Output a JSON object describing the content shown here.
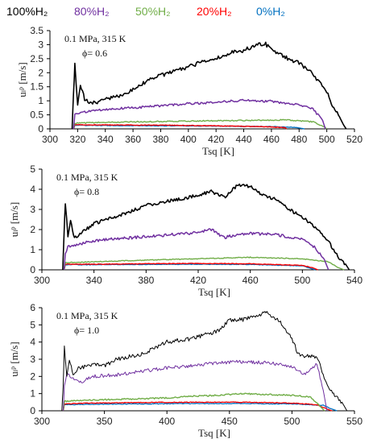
{
  "legend": [
    {
      "label": "100%H₂",
      "color": "#000000"
    },
    {
      "label": "80%H₂",
      "color": "#7030A0"
    },
    {
      "label": "50%H₂",
      "color": "#70AD47"
    },
    {
      "label": "20%H₂",
      "color": "#FF0000"
    },
    {
      "label": "0%H₂",
      "color": "#0070C0"
    }
  ],
  "chart_data": [
    {
      "type": "line",
      "title": "",
      "annotation_lines": [
        "0.1 MPa, 315 K",
        "ϕ= 0.6"
      ],
      "xlabel": "Tsq [K]",
      "ylabel": "uₗᵖ [m/s]",
      "xlim": [
        300,
        520
      ],
      "ylim": [
        0,
        3.5
      ],
      "xticks": [
        300,
        320,
        340,
        360,
        380,
        400,
        420,
        440,
        460,
        480,
        500,
        520
      ],
      "yticks": [
        0,
        0.5,
        1,
        1.5,
        2,
        2.5,
        3,
        3.5
      ],
      "ytick_labels": [
        "0",
        "0.5",
        "1",
        "1.5",
        "2",
        "2.5",
        "3",
        "3.5"
      ],
      "series": [
        {
          "name": "100%H₂",
          "color": "#000000",
          "width": 1.6,
          "noise": 0.07,
          "x": [
            316,
            317,
            318,
            320,
            322,
            325,
            330,
            340,
            350,
            360,
            370,
            380,
            390,
            400,
            410,
            420,
            430,
            440,
            450,
            455,
            460,
            470,
            480,
            490,
            500,
            505,
            510,
            512,
            514
          ],
          "y": [
            0.0,
            1.2,
            2.3,
            0.9,
            1.6,
            1.05,
            0.9,
            1.05,
            1.15,
            1.4,
            1.7,
            1.9,
            2.05,
            2.2,
            2.4,
            2.5,
            2.7,
            2.8,
            3.0,
            3.05,
            2.85,
            2.55,
            2.35,
            1.95,
            1.3,
            0.75,
            0.4,
            0.15,
            0.0
          ]
        },
        {
          "name": "80%H₂",
          "color": "#7030A0",
          "width": 1.5,
          "noise": 0.04,
          "x": [
            317,
            318,
            320,
            330,
            340,
            360,
            380,
            400,
            420,
            440,
            460,
            480,
            490,
            497,
            499
          ],
          "y": [
            0.0,
            0.5,
            0.55,
            0.65,
            0.7,
            0.75,
            0.82,
            0.9,
            0.95,
            1.02,
            0.98,
            0.85,
            0.7,
            0.3,
            0.0
          ]
        },
        {
          "name": "50%H₂",
          "color": "#70AD47",
          "width": 1.4,
          "noise": 0.02,
          "x": [
            317,
            318,
            330,
            360,
            400,
            440,
            470,
            490,
            498,
            500
          ],
          "y": [
            0.0,
            0.2,
            0.22,
            0.25,
            0.28,
            0.3,
            0.32,
            0.25,
            0.08,
            0.0
          ]
        },
        {
          "name": "20%H₂",
          "color": "#FF0000",
          "width": 1.4,
          "noise": 0.01,
          "x": [
            317,
            318,
            340,
            380,
            420,
            460,
            470,
            471
          ],
          "y": [
            0.0,
            0.15,
            0.14,
            0.13,
            0.11,
            0.07,
            0.04,
            0.0
          ]
        },
        {
          "name": "0%H₂",
          "color": "#0070C0",
          "width": 1.4,
          "noise": 0.01,
          "x": [
            317,
            318,
            340,
            380,
            420,
            460,
            478,
            484
          ],
          "y": [
            0.0,
            0.13,
            0.12,
            0.11,
            0.1,
            0.08,
            0.05,
            0.0
          ]
        }
      ]
    },
    {
      "type": "line",
      "title": "",
      "annotation_lines": [
        "0.1 MPa, 315 K",
        "ϕ= 0.8"
      ],
      "xlabel": "Tsq [K]",
      "ylabel": "uₗᵖ [m/s]",
      "xlim": [
        300,
        540
      ],
      "ylim": [
        0,
        5
      ],
      "xticks": [
        300,
        340,
        380,
        420,
        460,
        500,
        540
      ],
      "yticks": [
        0,
        1,
        2,
        3,
        4,
        5
      ],
      "ytick_labels": [
        "0",
        "1",
        "2",
        "3",
        "4",
        "5"
      ],
      "series": [
        {
          "name": "100%H₂",
          "color": "#000000",
          "width": 1.6,
          "noise": 0.08,
          "x": [
            316,
            317,
            318,
            320,
            322,
            325,
            330,
            340,
            360,
            380,
            400,
            420,
            430,
            440,
            450,
            460,
            470,
            480,
            490,
            500,
            510,
            520,
            528,
            534,
            536
          ],
          "y": [
            0.0,
            1.8,
            3.3,
            1.7,
            2.4,
            1.6,
            1.8,
            2.3,
            2.7,
            3.2,
            3.45,
            3.7,
            3.9,
            3.6,
            4.2,
            4.15,
            3.7,
            3.5,
            3.0,
            2.6,
            2.1,
            1.4,
            0.6,
            0.2,
            0.0
          ]
        },
        {
          "name": "80%H₂",
          "color": "#7030A0",
          "width": 1.5,
          "noise": 0.07,
          "x": [
            317,
            318,
            320,
            330,
            340,
            360,
            380,
            400,
            420,
            430,
            440,
            450,
            460,
            480,
            500,
            510,
            517,
            520
          ],
          "y": [
            0.0,
            0.8,
            1.15,
            1.3,
            1.45,
            1.55,
            1.65,
            1.75,
            1.85,
            2.0,
            1.6,
            1.75,
            1.8,
            1.75,
            1.5,
            1.1,
            0.5,
            0.0
          ]
        },
        {
          "name": "50%H₂",
          "color": "#70AD47",
          "width": 1.4,
          "noise": 0.02,
          "x": [
            317,
            318,
            340,
            380,
            420,
            460,
            500,
            520,
            528,
            532
          ],
          "y": [
            0.0,
            0.35,
            0.4,
            0.48,
            0.55,
            0.62,
            0.55,
            0.4,
            0.1,
            0.0
          ]
        },
        {
          "name": "20%H₂",
          "color": "#FF0000",
          "width": 1.4,
          "noise": 0.015,
          "x": [
            317,
            318,
            340,
            380,
            420,
            460,
            500,
            508,
            512
          ],
          "y": [
            0.0,
            0.28,
            0.28,
            0.3,
            0.32,
            0.3,
            0.22,
            0.1,
            0.0
          ]
        },
        {
          "name": "0%H₂",
          "color": "#0070C0",
          "width": 1.4,
          "noise": 0.015,
          "x": [
            317,
            318,
            340,
            380,
            420,
            460,
            500,
            506,
            510
          ],
          "y": [
            0.0,
            0.25,
            0.26,
            0.27,
            0.28,
            0.27,
            0.2,
            0.08,
            0.0
          ]
        }
      ]
    },
    {
      "type": "line",
      "title": "",
      "annotation_lines": [
        "0.1 MPa, 315 K",
        "ϕ= 1.0"
      ],
      "xlabel": "Tsq [K]",
      "ylabel": "uₗᵖ [m/s]",
      "xlim": [
        300,
        550
      ],
      "ylim": [
        0,
        6
      ],
      "xticks": [
        300,
        350,
        400,
        450,
        500,
        550
      ],
      "yticks": [
        0,
        1,
        2,
        3,
        4,
        5,
        6
      ],
      "ytick_labels": [
        "0",
        "1",
        "2",
        "3",
        "4",
        "5",
        "6"
      ],
      "series": [
        {
          "name": "100%H₂",
          "color": "#000000",
          "width": 1.0,
          "noise": 0.12,
          "x": [
            316,
            317,
            318,
            320,
            322,
            325,
            330,
            340,
            350,
            360,
            380,
            400,
            420,
            440,
            450,
            460,
            470,
            480,
            490,
            500,
            505,
            510,
            520,
            530,
            540,
            544
          ],
          "y": [
            0.0,
            1.5,
            3.7,
            2.0,
            3.0,
            2.2,
            2.5,
            2.7,
            2.6,
            3.0,
            3.3,
            4.0,
            4.2,
            4.6,
            5.3,
            5.3,
            5.5,
            5.7,
            5.2,
            4.2,
            3.3,
            3.2,
            3.1,
            1.2,
            0.5,
            0.0
          ]
        },
        {
          "name": "80%H₂",
          "color": "#7030A0",
          "width": 1.0,
          "noise": 0.1,
          "x": [
            317,
            318,
            320,
            330,
            340,
            360,
            380,
            400,
            420,
            440,
            460,
            480,
            500,
            510,
            520,
            525,
            528
          ],
          "y": [
            0.0,
            1.4,
            2.2,
            1.6,
            2.0,
            2.1,
            2.3,
            2.5,
            2.6,
            2.8,
            2.85,
            2.8,
            2.6,
            2.1,
            2.75,
            1.2,
            0.0
          ]
        },
        {
          "name": "50%H₂",
          "color": "#70AD47",
          "width": 1.4,
          "noise": 0.04,
          "x": [
            317,
            318,
            330,
            350,
            380,
            400,
            420,
            440,
            460,
            480,
            500,
            515,
            522,
            526
          ],
          "y": [
            0.0,
            0.55,
            0.6,
            0.65,
            0.7,
            0.75,
            0.85,
            0.9,
            1.0,
            0.95,
            0.9,
            0.8,
            0.3,
            0.0
          ]
        },
        {
          "name": "20%H₂",
          "color": "#FF0000",
          "width": 1.3,
          "noise": 0.02,
          "x": [
            317,
            318,
            340,
            380,
            420,
            460,
            500,
            520,
            528,
            532
          ],
          "y": [
            0.0,
            0.4,
            0.45,
            0.48,
            0.5,
            0.5,
            0.45,
            0.35,
            0.1,
            0.0
          ]
        },
        {
          "name": "0%H₂",
          "color": "#0070C0",
          "width": 1.3,
          "noise": 0.02,
          "x": [
            317,
            318,
            340,
            380,
            420,
            460,
            500,
            525,
            532,
            536
          ],
          "y": [
            0.0,
            0.35,
            0.38,
            0.4,
            0.42,
            0.42,
            0.4,
            0.32,
            0.1,
            0.0
          ]
        }
      ]
    }
  ]
}
